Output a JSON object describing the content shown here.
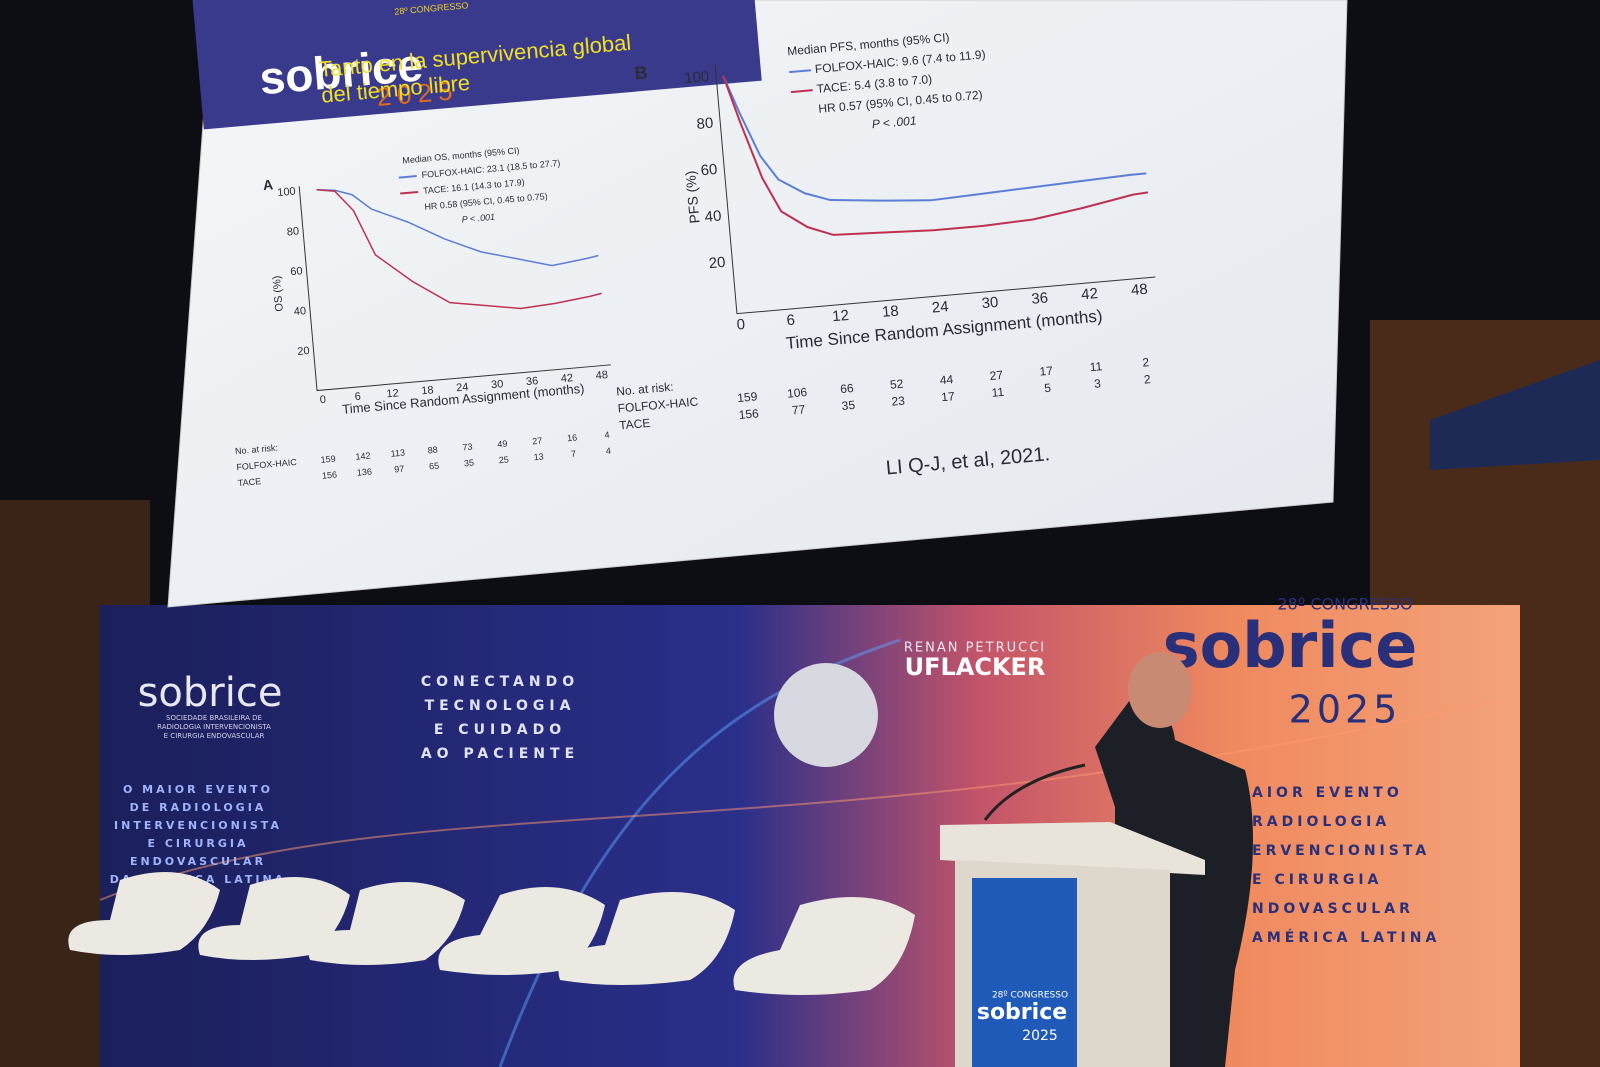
{
  "slide": {
    "header": {
      "congress": "28º CONGRESSO",
      "logo": "sobrice",
      "year": "2025",
      "title_lines": [
        "Tanto en la supervivencia global",
        "del tiempo libre"
      ]
    },
    "panel_a": {
      "label": "A",
      "legend": [
        "Median OS, months (95% CI)",
        "FOLFOX-HAIC: 23.1 (18.5 to 27.7)",
        "TACE: 16.1 (14.3 to 17.9)",
        "HR 0.58 (95% CI, 0.45 to 0.75)",
        "P < .001"
      ],
      "y_label": "OS (%)",
      "y_ticks": [
        100,
        80,
        60,
        40,
        20
      ],
      "x_ticks": [
        0,
        6,
        12,
        18,
        24,
        30,
        36,
        42,
        48
      ],
      "x_label": "Time Since Random Assignment (months)",
      "risk": {
        "header": "No. at risk:",
        "rows": [
          {
            "name": "FOLFOX-HAIC",
            "values": [
              159,
              142,
              113,
              88,
              73,
              49,
              27,
              16,
              4
            ]
          },
          {
            "name": "TACE",
            "values": [
              156,
              136,
              97,
              65,
              35,
              25,
              13,
              7,
              4
            ]
          }
        ]
      }
    },
    "panel_b": {
      "label": "B",
      "legend": [
        "Median PFS, months (95% CI)",
        "FOLFOX-HAIC: 9.6 (7.4 to 11.9)",
        "TACE: 5.4 (3.8 to 7.0)",
        "HR 0.57 (95% CI, 0.45 to 0.72)",
        "P < .001"
      ],
      "y_label": "PFS (%)",
      "y_ticks": [
        100,
        80,
        60,
        40,
        20
      ],
      "x_ticks": [
        0,
        6,
        12,
        18,
        24,
        30,
        36,
        42,
        48
      ],
      "x_label": "Time Since Random Assignment (months)",
      "risk": {
        "header": "No. at risk:",
        "rows": [
          {
            "name": "FOLFOX-HAIC",
            "values": [
              159,
              106,
              66,
              52,
              44,
              27,
              17,
              11,
              2
            ]
          },
          {
            "name": "TACE",
            "values": [
              156,
              77,
              35,
              23,
              17,
              11,
              5,
              3,
              2
            ]
          }
        ]
      }
    },
    "citation": "LI Q-J, et al, 2021."
  },
  "backdrop": {
    "left_logo": "sobrice",
    "left_society": [
      "SOCIEDADE BRASILEIRA DE",
      "RADIOLOGIA INTERVENCIONISTA",
      "E CIRURGIA ENDOVASCULAR"
    ],
    "left_tagline": [
      "O MAIOR EVENTO",
      "DE RADIOLOGIA",
      "INTERVENCIONISTA",
      "E CIRURGIA",
      "ENDOVASCULAR",
      "DA AMÉRICA LATINA"
    ],
    "center_tagline": [
      "CONECTANDO",
      "TECNOLOGIA",
      "E CUIDADO",
      "AO PACIENTE"
    ],
    "honoree_first": "RENAN PETRUCCI",
    "honoree_last": "UFLACKER",
    "right_congress": "28º CONGRESSO",
    "right_logo": "sobrice",
    "right_year": "2025",
    "right_tagline": [
      "AIOR EVENTO",
      "RADIOLOGIA",
      "ERVENCIONISTA",
      "E CIRURGIA",
      "NDOVASCULAR",
      "AMÉRICA LATINA"
    ]
  },
  "podium": {
    "congress": "28º CONGRESSO",
    "logo": "sobrice",
    "year": "2025"
  }
}
